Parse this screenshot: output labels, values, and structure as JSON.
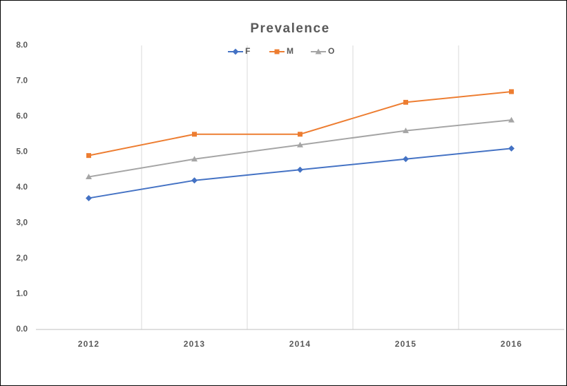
{
  "chart_data": {
    "type": "line",
    "title": "Prevalence",
    "categories": [
      "2012",
      "2013",
      "2014",
      "2015",
      "2016"
    ],
    "series": [
      {
        "name": "F",
        "color": "#4472c4",
        "marker": "diamond",
        "values": [
          3.7,
          4.2,
          4.5,
          4.8,
          5.1
        ]
      },
      {
        "name": "M",
        "color": "#ed7d31",
        "marker": "square",
        "values": [
          4.9,
          5.5,
          5.5,
          6.4,
          6.7
        ]
      },
      {
        "name": "O",
        "color": "#a5a5a5",
        "marker": "triangle",
        "values": [
          4.3,
          4.8,
          5.2,
          5.6,
          5.9
        ]
      }
    ],
    "ylim": [
      0,
      8
    ],
    "yticks": [
      {
        "value": 0,
        "label": "0.0"
      },
      {
        "value": 1,
        "label": "1.0"
      },
      {
        "value": 2,
        "label": "2,0"
      },
      {
        "value": 3,
        "label": "3,0"
      },
      {
        "value": 4,
        "label": "4.0"
      },
      {
        "value": 5,
        "label": "5.0"
      },
      {
        "value": 6,
        "label": "6.0"
      },
      {
        "value": 7,
        "label": "7.0"
      },
      {
        "value": 8,
        "label": "8.0"
      }
    ],
    "legend": "top"
  }
}
